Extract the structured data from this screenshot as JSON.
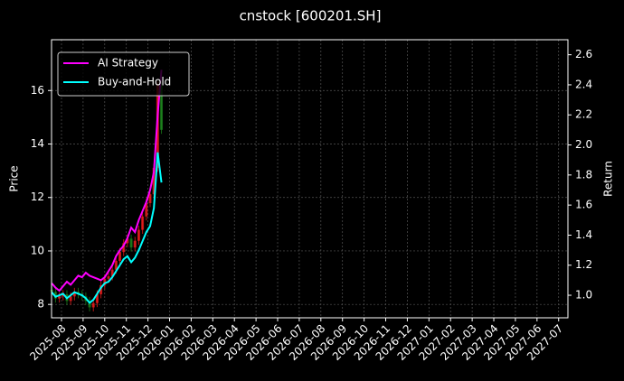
{
  "chart_data": {
    "type": "candlestick",
    "title": "cnstock [600201.SH]",
    "ylabel": "Price",
    "y2label": "Return",
    "x": [
      -0.45,
      -0.275,
      -0.1,
      0.075,
      0.25,
      0.425,
      0.6,
      0.775,
      0.95,
      1.125,
      1.3,
      1.475,
      1.65,
      1.825,
      2.0,
      2.175,
      2.35,
      2.525,
      2.7,
      2.875,
      3.05,
      3.225,
      3.4,
      3.575,
      3.75,
      3.925,
      4.1,
      4.275,
      4.45,
      4.625
    ],
    "candles": {
      "open": [
        8.55,
        8.47,
        8.22,
        8.3,
        8.38,
        8.13,
        8.3,
        8.47,
        8.38,
        8.3,
        8.13,
        7.89,
        8.05,
        8.38,
        8.72,
        8.96,
        9.05,
        9.3,
        9.63,
        9.96,
        10.29,
        10.46,
        10.13,
        10.38,
        10.79,
        11.29,
        11.79,
        12.12,
        13.11,
        16.19
      ],
      "high": [
        8.7,
        8.62,
        8.45,
        8.53,
        8.53,
        8.45,
        8.62,
        8.62,
        8.53,
        8.45,
        8.28,
        8.2,
        8.53,
        8.87,
        9.11,
        9.2,
        9.45,
        9.78,
        10.11,
        10.44,
        10.61,
        10.61,
        10.53,
        10.94,
        11.44,
        11.94,
        12.27,
        13.26,
        16.34,
        16.34
      ],
      "low": [
        8.32,
        8.07,
        8.07,
        8.15,
        7.98,
        7.98,
        8.15,
        8.23,
        8.15,
        7.98,
        7.74,
        7.74,
        7.9,
        8.23,
        8.57,
        8.81,
        8.9,
        9.15,
        9.48,
        9.81,
        10.14,
        9.98,
        9.98,
        10.23,
        10.64,
        11.14,
        11.64,
        11.97,
        12.96,
        14.38
      ],
      "close": [
        8.47,
        8.22,
        8.3,
        8.38,
        8.13,
        8.3,
        8.47,
        8.38,
        8.3,
        8.13,
        7.89,
        8.05,
        8.38,
        8.72,
        8.96,
        9.05,
        9.3,
        9.63,
        9.96,
        10.29,
        10.46,
        10.13,
        10.38,
        10.79,
        11.29,
        11.79,
        12.12,
        13.11,
        16.19,
        14.53
      ],
      "up_color": "#ff2020",
      "down_color": "#1f8f1f"
    },
    "series": [
      {
        "name": "AI Strategy",
        "color": "#ff00ff",
        "axis": "y2",
        "values": [
          1.08,
          1.05,
          1.03,
          1.06,
          1.09,
          1.07,
          1.1,
          1.13,
          1.12,
          1.15,
          1.13,
          1.12,
          1.11,
          1.1,
          1.12,
          1.16,
          1.2,
          1.26,
          1.3,
          1.33,
          1.38,
          1.45,
          1.42,
          1.5,
          1.56,
          1.62,
          1.7,
          1.82,
          2.2,
          2.5
        ]
      },
      {
        "name": "Buy-and-Hold",
        "color": "#00ffff",
        "axis": "y2",
        "values": [
          1.02,
          0.99,
          1.0,
          1.01,
          0.98,
          1.0,
          1.02,
          1.01,
          1.0,
          0.98,
          0.95,
          0.97,
          1.01,
          1.05,
          1.08,
          1.09,
          1.12,
          1.16,
          1.2,
          1.24,
          1.26,
          1.22,
          1.25,
          1.3,
          1.36,
          1.42,
          1.46,
          1.58,
          1.95,
          1.75
        ]
      }
    ],
    "xlim": [
      -0.46,
      23.43
    ],
    "xticks": [
      {
        "value": 0,
        "label": "2025-08"
      },
      {
        "value": 1,
        "label": "2025-09"
      },
      {
        "value": 2,
        "label": "2025-10"
      },
      {
        "value": 3,
        "label": "2025-11"
      },
      {
        "value": 4,
        "label": "2025-12"
      },
      {
        "value": 5,
        "label": "2026-01"
      },
      {
        "value": 6,
        "label": "2026-02"
      },
      {
        "value": 7,
        "label": "2026-03"
      },
      {
        "value": 8,
        "label": "2026-04"
      },
      {
        "value": 9,
        "label": "2026-05"
      },
      {
        "value": 10,
        "label": "2026-06"
      },
      {
        "value": 11,
        "label": "2026-07"
      },
      {
        "value": 12,
        "label": "2026-08"
      },
      {
        "value": 13,
        "label": "2026-09"
      },
      {
        "value": 14,
        "label": "2026-10"
      },
      {
        "value": 15,
        "label": "2026-11"
      },
      {
        "value": 16,
        "label": "2026-12"
      },
      {
        "value": 17,
        "label": "2027-01"
      },
      {
        "value": 18,
        "label": "2027-02"
      },
      {
        "value": 19,
        "label": "2027-03"
      },
      {
        "value": 20,
        "label": "2027-04"
      },
      {
        "value": 21,
        "label": "2027-05"
      },
      {
        "value": 22,
        "label": "2027-06"
      },
      {
        "value": 23,
        "label": "2027-07"
      }
    ],
    "ylim": [
      7.5,
      17.9
    ],
    "yticks": [
      8,
      10,
      12,
      14,
      16
    ],
    "y2lim": [
      0.85,
      2.7
    ],
    "y2ticks": [
      {
        "value": 1,
        "label": "1.0"
      },
      1.2,
      1.4,
      1.6,
      1.8,
      {
        "value": 2,
        "label": "2.0"
      },
      2.2,
      2.4,
      2.6
    ],
    "grid": true,
    "legend": "upper left"
  }
}
